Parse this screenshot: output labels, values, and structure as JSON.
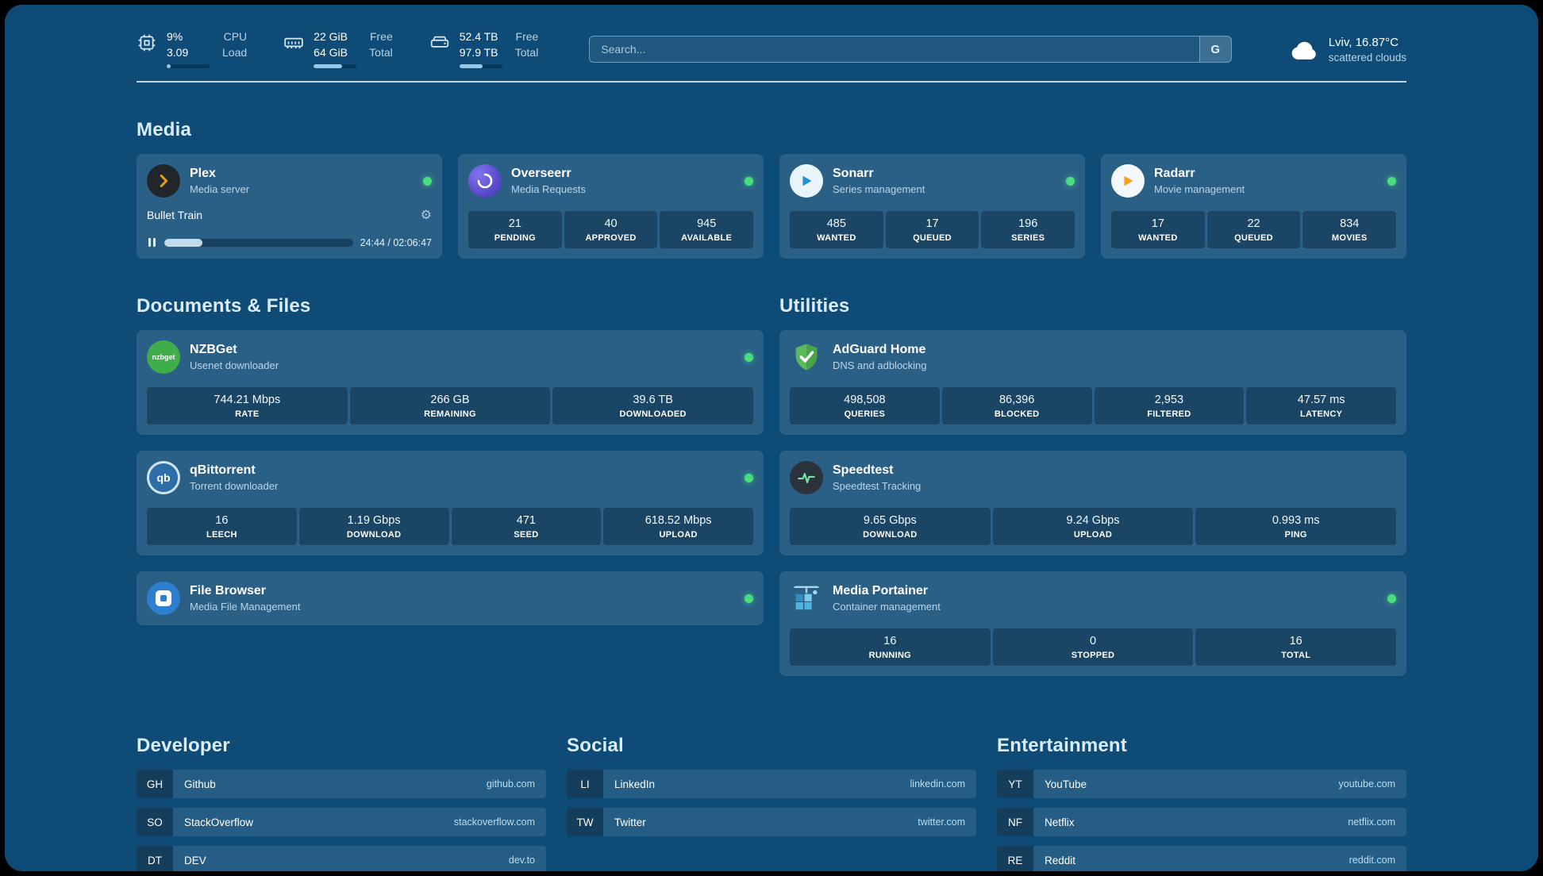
{
  "icons": {
    "gear": "⚙"
  },
  "topbar": {
    "cpu": {
      "value": "9%",
      "sub": "3.09",
      "label_top": "CPU",
      "label_bottom": "Load",
      "progress": 9
    },
    "memory": {
      "value": "22 GiB",
      "sub": "64 GiB",
      "label_top": "Free",
      "label_bottom": "Total",
      "progress": 66
    },
    "disk": {
      "value": "52.4 TB",
      "sub": "97.9 TB",
      "label_top": "Free",
      "label_bottom": "Total",
      "progress": 54
    },
    "search": {
      "placeholder": "Search...",
      "button_label": "G"
    },
    "weather": {
      "location": "Lviv, 16.87°C",
      "condition": "scattered clouds"
    }
  },
  "media": {
    "title": "Media",
    "plex": {
      "name": "Plex",
      "subtitle": "Media server",
      "now_playing": "Bullet Train",
      "time": "24:44 / 02:06:47",
      "progress": 20
    },
    "overseerr": {
      "name": "Overseerr",
      "subtitle": "Media Requests",
      "stats": [
        {
          "value": "21",
          "label": "PENDING"
        },
        {
          "value": "40",
          "label": "APPROVED"
        },
        {
          "value": "945",
          "label": "AVAILABLE"
        }
      ]
    },
    "sonarr": {
      "name": "Sonarr",
      "subtitle": "Series management",
      "stats": [
        {
          "value": "485",
          "label": "WANTED"
        },
        {
          "value": "17",
          "label": "QUEUED"
        },
        {
          "value": "196",
          "label": "SERIES"
        }
      ]
    },
    "radarr": {
      "name": "Radarr",
      "subtitle": "Movie management",
      "stats": [
        {
          "value": "17",
          "label": "WANTED"
        },
        {
          "value": "22",
          "label": "QUEUED"
        },
        {
          "value": "834",
          "label": "MOVIES"
        }
      ]
    }
  },
  "documents": {
    "title": "Documents & Files",
    "nzbget": {
      "name": "NZBGet",
      "subtitle": "Usenet downloader",
      "icon_text": "nzbget",
      "stats": [
        {
          "value": "744.21 Mbps",
          "label": "RATE"
        },
        {
          "value": "266 GB",
          "label": "REMAINING"
        },
        {
          "value": "39.6 TB",
          "label": "DOWNLOADED"
        }
      ]
    },
    "qbittorrent": {
      "name": "qBittorrent",
      "subtitle": "Torrent downloader",
      "icon_text": "qb",
      "stats": [
        {
          "value": "16",
          "label": "LEECH"
        },
        {
          "value": "1.19 Gbps",
          "label": "DOWNLOAD"
        },
        {
          "value": "471",
          "label": "SEED"
        },
        {
          "value": "618.52 Mbps",
          "label": "UPLOAD"
        }
      ]
    },
    "filebrowser": {
      "name": "File Browser",
      "subtitle": "Media File Management"
    }
  },
  "utilities": {
    "title": "Utilities",
    "adguard": {
      "name": "AdGuard Home",
      "subtitle": "DNS and adblocking",
      "stats": [
        {
          "value": "498,508",
          "label": "QUERIES"
        },
        {
          "value": "86,396",
          "label": "BLOCKED"
        },
        {
          "value": "2,953",
          "label": "FILTERED"
        },
        {
          "value": "47.57 ms",
          "label": "LATENCY"
        }
      ]
    },
    "speedtest": {
      "name": "Speedtest",
      "subtitle": "Speedtest Tracking",
      "stats": [
        {
          "value": "9.65 Gbps",
          "label": "DOWNLOAD"
        },
        {
          "value": "9.24 Gbps",
          "label": "UPLOAD"
        },
        {
          "value": "0.993 ms",
          "label": "PING"
        }
      ]
    },
    "portainer": {
      "name": "Media Portainer",
      "subtitle": "Container management",
      "stats": [
        {
          "value": "16",
          "label": "RUNNING"
        },
        {
          "value": "0",
          "label": "STOPPED"
        },
        {
          "value": "16",
          "label": "TOTAL"
        }
      ]
    }
  },
  "bookmarks": [
    {
      "title": "Developer",
      "items": [
        {
          "abbr": "GH",
          "name": "Github",
          "url": "github.com"
        },
        {
          "abbr": "SO",
          "name": "StackOverflow",
          "url": "stackoverflow.com"
        },
        {
          "abbr": "DT",
          "name": "DEV",
          "url": "dev.to"
        }
      ]
    },
    {
      "title": "Social",
      "items": [
        {
          "abbr": "LI",
          "name": "LinkedIn",
          "url": "linkedin.com"
        },
        {
          "abbr": "TW",
          "name": "Twitter",
          "url": "twitter.com"
        }
      ]
    },
    {
      "title": "Entertainment",
      "items": [
        {
          "abbr": "YT",
          "name": "YouTube",
          "url": "youtube.com"
        },
        {
          "abbr": "NF",
          "name": "Netflix",
          "url": "netflix.com"
        },
        {
          "abbr": "RE",
          "name": "Reddit",
          "url": "reddit.com"
        }
      ]
    }
  ]
}
